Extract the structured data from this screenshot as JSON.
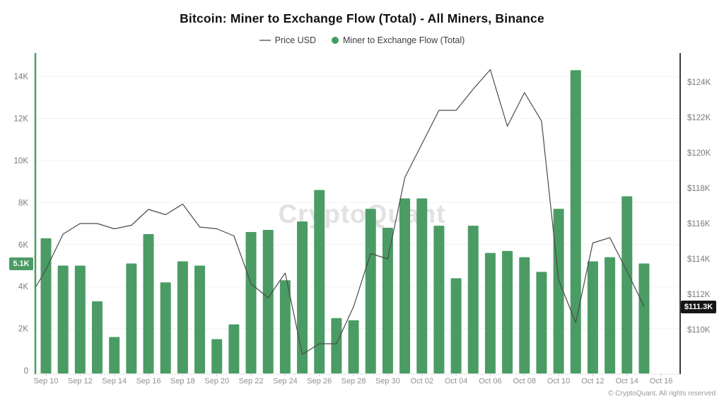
{
  "header": {
    "title": "Bitcoin: Miner to Exchange Flow (Total) - All Miners, Binance",
    "legend": [
      {
        "label": "Price USD",
        "type": "line"
      },
      {
        "label": "Miner to Exchange Flow (Total)",
        "type": "dot"
      }
    ]
  },
  "watermark": "CryptoQuant",
  "footer": {
    "copyright": "© CryptoQuant. All rights reserved"
  },
  "colors": {
    "bar": "#4a9c64",
    "price_line": "#4a4a4a",
    "left_axis_line": "#4a9c64",
    "right_axis_line": "#3c3c3c",
    "grid": "#f0f0f0",
    "x_axis_line": "#e0e0e0",
    "x_tick": "#cccccc",
    "y_label": "#7b7b7b",
    "x_label": "#8f8f8f",
    "left_badge_bg": "#4a9c64",
    "right_badge_bg": "#161616"
  },
  "chart_data": {
    "type": "bar",
    "title": "Bitcoin: Miner to Exchange Flow (Total) - All Miners, Binance",
    "categories": [
      "Sep 10",
      "Sep 11",
      "Sep 12",
      "Sep 13",
      "Sep 14",
      "Sep 15",
      "Sep 16",
      "Sep 17",
      "Sep 18",
      "Sep 19",
      "Sep 20",
      "Sep 21",
      "Sep 22",
      "Sep 23",
      "Sep 24",
      "Sep 25",
      "Sep 26",
      "Sep 27",
      "Sep 28",
      "Sep 29",
      "Sep 30",
      "Oct 01",
      "Oct 02",
      "Oct 03",
      "Oct 04",
      "Oct 05",
      "Oct 06",
      "Oct 07",
      "Oct 08",
      "Oct 09",
      "Oct 10",
      "Oct 11",
      "Oct 12",
      "Oct 13",
      "Oct 14",
      "Oct 15"
    ],
    "series": [
      {
        "name": "Miner to Exchange Flow (Total)",
        "type": "bar",
        "axis": "left",
        "unit": "K",
        "values": [
          6.3,
          5.0,
          5.0,
          3.3,
          1.6,
          5.1,
          6.5,
          4.2,
          5.2,
          5.0,
          1.5,
          2.2,
          6.6,
          6.7,
          4.3,
          7.1,
          8.6,
          2.5,
          2.4,
          7.7,
          6.8,
          8.2,
          8.2,
          6.9,
          4.4,
          6.9,
          5.6,
          5.7,
          5.4,
          4.7,
          7.7,
          14.3,
          5.2,
          5.4,
          8.3,
          5.1
        ]
      },
      {
        "name": "Price USD",
        "type": "line",
        "axis": "right",
        "unit": "$K",
        "values": [
          113.4,
          115.4,
          116.0,
          116.0,
          115.7,
          115.9,
          116.8,
          116.5,
          117.1,
          115.8,
          115.7,
          115.3,
          112.6,
          111.8,
          113.2,
          108.6,
          109.2,
          109.2,
          111.3,
          114.3,
          114.0,
          118.6,
          120.5,
          122.4,
          122.4,
          123.6,
          124.7,
          121.5,
          123.4,
          121.8,
          112.8,
          110.4,
          114.9,
          115.2,
          113.3,
          111.3
        ]
      }
    ],
    "price_edge_start": {
      "day_offset": -0.6,
      "value_k": 112.4
    },
    "x_tick_labels": [
      "Sep 10",
      "Sep 12",
      "Sep 14",
      "Sep 16",
      "Sep 18",
      "Sep 20",
      "Sep 22",
      "Sep 24",
      "Sep 26",
      "Sep 28",
      "Sep 30",
      "Oct 02",
      "Oct 04",
      "Oct 06",
      "Oct 08",
      "Oct 10",
      "Oct 12",
      "Oct 14",
      "Oct 16"
    ],
    "left_axis": {
      "label_values": [
        0,
        2,
        4,
        6,
        8,
        10,
        12,
        14
      ],
      "ticks": [
        "0",
        "2K",
        "4K",
        "6K",
        "8K",
        "10K",
        "12K",
        "14K"
      ],
      "ylim_k": [
        0,
        15.1
      ],
      "current_label": "5.1K",
      "current_value_k": 5.1
    },
    "right_axis": {
      "label_values": [
        110,
        112,
        114,
        116,
        118,
        120,
        122,
        124
      ],
      "ticks": [
        "$110K",
        "$112K",
        "$114K",
        "$116K",
        "$118K",
        "$120K",
        "$122K",
        "$124K"
      ],
      "ylim_usd_k": [
        107.6,
        125.6
      ],
      "current_label": "$111.3K",
      "current_value_usd_k": 111.3
    },
    "grid": "horizontal-only",
    "legend_position": "top-center"
  }
}
